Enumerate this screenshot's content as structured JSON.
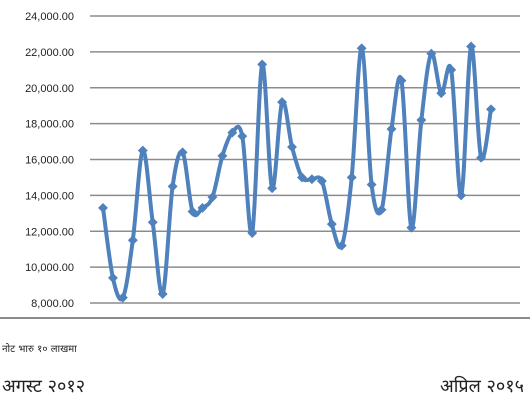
{
  "chart_data": {
    "type": "line",
    "title": "",
    "xlabel": "",
    "ylabel": "",
    "ylim": [
      8000,
      24000
    ],
    "y_ticks": [
      "24,000.00",
      "22,000.00",
      "20,000.00",
      "18,000.00",
      "16,000.00",
      "14,000.00",
      "12,000.00",
      "10,000.00",
      "8,000.00"
    ],
    "grid": true,
    "series_color": "#4F81BD",
    "series": [
      {
        "values": [
          13300,
          9400,
          8300,
          11500,
          16500,
          12500,
          8500,
          14500,
          16400,
          13100,
          13300,
          13900,
          16200,
          17500,
          17300,
          11900,
          21300,
          14400,
          19200,
          16700,
          15000,
          14900,
          14800,
          12400,
          11200,
          15000,
          22200,
          14600,
          13200,
          17700,
          20400,
          12200,
          18200,
          21900,
          19700,
          21000,
          14000,
          22300,
          16100,
          18800
        ]
      }
    ]
  },
  "note": "नोट भारु १० लाखमा",
  "period_start": "अगस्ट २०१२",
  "period_end": "अप्रिल २०१५"
}
